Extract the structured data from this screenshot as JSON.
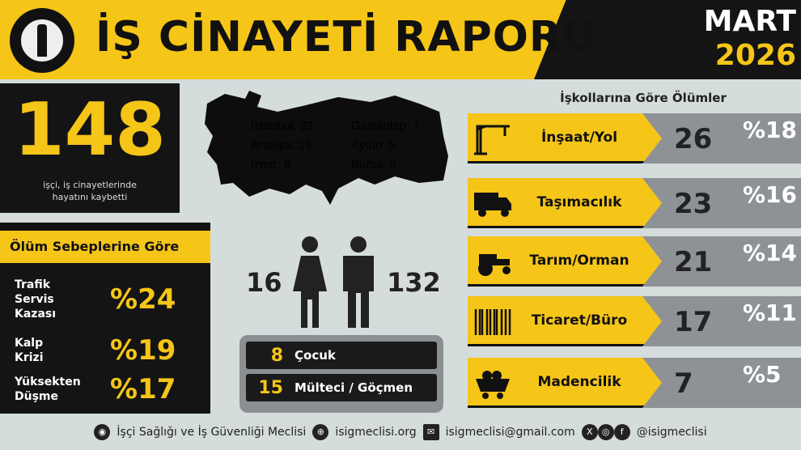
{
  "header": {
    "title": "İŞ CİNAYETİ RAPORU",
    "month": "MART",
    "year": "2026"
  },
  "total": {
    "value": "148",
    "caption": "işçi, iş cinayetlerinde hayatını kaybetti"
  },
  "cities": [
    {
      "label": "İstanbul: 22"
    },
    {
      "label": "Antalya: 13"
    },
    {
      "label": "İzmir: 8"
    },
    {
      "label": "Gaziantep: 7"
    },
    {
      "label": "Aydın: 5"
    },
    {
      "label": "Bursa: 5"
    }
  ],
  "causes": {
    "title": "Ölüm Sebeplerine Göre",
    "items": [
      {
        "label": "Trafik\nServis\nKazası",
        "pct": "%24"
      },
      {
        "label": "Kalp\nKrizi",
        "pct": "%19"
      },
      {
        "label": "Yüksekten\nDüşme",
        "pct": "%17"
      }
    ]
  },
  "gender": {
    "women": "16",
    "men": "132"
  },
  "extra": [
    {
      "n": "8",
      "label": "Çocuk"
    },
    {
      "n": "15",
      "label": "Mülteci / Göçmen"
    }
  ],
  "sectors": {
    "title": "İşkollarına Göre Ölümler",
    "items": [
      {
        "name": "İnşaat/Yol",
        "count": "26",
        "pct": "%18",
        "icon": "crane-icon"
      },
      {
        "name": "Taşımacılık",
        "count": "23",
        "pct": "%16",
        "icon": "truck-icon"
      },
      {
        "name": "Tarım/Orman",
        "count": "21",
        "pct": "%14",
        "icon": "tractor-icon"
      },
      {
        "name": "Ticaret/Büro",
        "count": "17",
        "pct": "%11",
        "icon": "barcode-icon"
      },
      {
        "name": "Madencilik",
        "count": "7",
        "pct": "%5",
        "icon": "mine-cart-icon"
      }
    ]
  },
  "footer": {
    "org": "İşçi Sağlığı ve İş Güvenliği Meclisi",
    "web": "isigmeclisi.org",
    "email": "isigmeclisi@gmail.com",
    "social": "@isigmeclisi"
  },
  "colors": {
    "accent": "#f5c518",
    "dark": "#141414",
    "background": "#d5dcdc",
    "gray": "#8e9296"
  }
}
